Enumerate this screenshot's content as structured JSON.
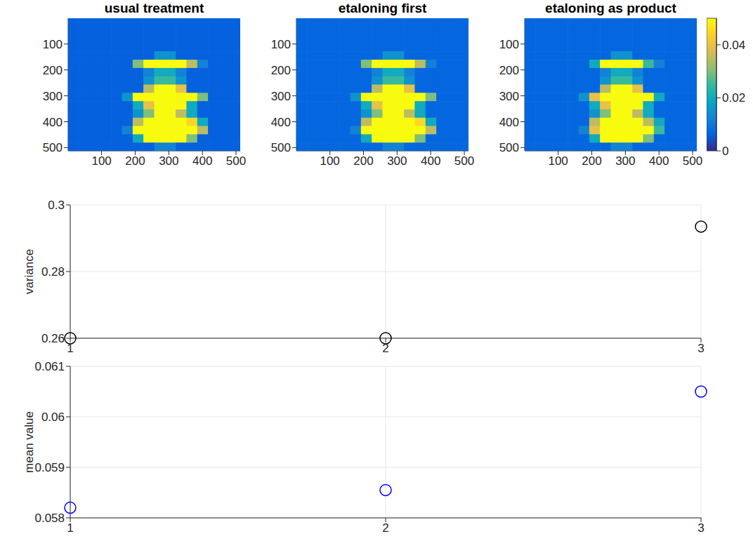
{
  "chart_data": [
    {
      "type": "heatmap",
      "title": "usual treatment",
      "xlim": [
        0.5,
        512.5
      ],
      "ylim": [
        0.5,
        512.5
      ],
      "xticks": [
        100,
        200,
        300,
        400,
        500
      ],
      "yticks": [
        100,
        200,
        300,
        400,
        500
      ],
      "grid": false,
      "cells": [
        [
          0.006,
          0.006,
          0.006,
          0.006,
          0.006,
          0.006,
          0.006,
          0.006,
          0.006,
          0.006,
          0.006,
          0.006,
          0.006,
          0.006,
          0.006,
          0.006
        ],
        [
          0.006,
          0.006,
          0.006,
          0.006,
          0.006,
          0.006,
          0.006,
          0.006,
          0.006,
          0.006,
          0.006,
          0.006,
          0.006,
          0.006,
          0.006,
          0.006
        ],
        [
          0.006,
          0.006,
          0.006,
          0.006,
          0.006,
          0.006,
          0.006,
          0.006,
          0.006,
          0.006,
          0.006,
          0.006,
          0.006,
          0.006,
          0.006,
          0.006
        ],
        [
          0.006,
          0.006,
          0.006,
          0.006,
          0.006,
          0.006,
          0.006,
          0.006,
          0.006,
          0.006,
          0.006,
          0.006,
          0.006,
          0.006,
          0.006,
          0.006
        ],
        [
          0.006,
          0.006,
          0.006,
          0.006,
          0.006,
          0.006,
          0.006,
          0.006,
          0.015,
          0.015,
          0.006,
          0.006,
          0.006,
          0.006,
          0.006,
          0.006
        ],
        [
          0.006,
          0.006,
          0.006,
          0.006,
          0.006,
          0.006,
          0.03,
          0.07,
          0.07,
          0.07,
          0.07,
          0.035,
          0.012,
          0.006,
          0.006,
          0.006
        ],
        [
          0.006,
          0.006,
          0.006,
          0.006,
          0.006,
          0.006,
          0.006,
          0.012,
          0.02,
          0.02,
          0.012,
          0.006,
          0.006,
          0.006,
          0.006,
          0.006
        ],
        [
          0.006,
          0.006,
          0.006,
          0.006,
          0.006,
          0.006,
          0.006,
          0.015,
          0.025,
          0.025,
          0.015,
          0.006,
          0.006,
          0.006,
          0.006,
          0.006
        ],
        [
          0.006,
          0.006,
          0.006,
          0.006,
          0.006,
          0.006,
          0.006,
          0.035,
          0.07,
          0.07,
          0.04,
          0.006,
          0.006,
          0.006,
          0.006,
          0.006
        ],
        [
          0.006,
          0.006,
          0.006,
          0.006,
          0.006,
          0.015,
          0.05,
          0.07,
          0.07,
          0.07,
          0.07,
          0.07,
          0.03,
          0.006,
          0.006,
          0.006
        ],
        [
          0.006,
          0.006,
          0.006,
          0.006,
          0.006,
          0.006,
          0.02,
          0.04,
          0.07,
          0.07,
          0.05,
          0.02,
          0.006,
          0.006,
          0.006,
          0.006
        ],
        [
          0.006,
          0.006,
          0.006,
          0.006,
          0.006,
          0.006,
          0.015,
          0.03,
          0.06,
          0.06,
          0.035,
          0.02,
          0.006,
          0.006,
          0.006,
          0.006
        ],
        [
          0.006,
          0.006,
          0.006,
          0.006,
          0.006,
          0.006,
          0.035,
          0.07,
          0.07,
          0.07,
          0.07,
          0.045,
          0.02,
          0.006,
          0.006,
          0.006
        ],
        [
          0.006,
          0.006,
          0.006,
          0.006,
          0.006,
          0.012,
          0.05,
          0.07,
          0.07,
          0.07,
          0.07,
          0.07,
          0.035,
          0.006,
          0.006,
          0.006
        ],
        [
          0.006,
          0.006,
          0.006,
          0.006,
          0.006,
          0.006,
          0.02,
          0.07,
          0.07,
          0.07,
          0.07,
          0.03,
          0.006,
          0.006,
          0.006,
          0.006
        ],
        [
          0.006,
          0.006,
          0.006,
          0.006,
          0.006,
          0.006,
          0.006,
          0.006,
          0.012,
          0.012,
          0.006,
          0.006,
          0.006,
          0.006,
          0.006,
          0.006
        ]
      ]
    },
    {
      "type": "heatmap",
      "title": "etaloning first",
      "xlim": [
        0.5,
        512.5
      ],
      "ylim": [
        0.5,
        512.5
      ],
      "xticks": [
        100,
        200,
        300,
        400,
        500
      ],
      "yticks": [
        100,
        200,
        300,
        400,
        500
      ],
      "grid": false,
      "cells": [
        [
          0.007,
          0.007,
          0.007,
          0.007,
          0.007,
          0.007,
          0.007,
          0.007,
          0.007,
          0.007,
          0.007,
          0.007,
          0.007,
          0.007,
          0.007,
          0.007
        ],
        [
          0.007,
          0.007,
          0.007,
          0.007,
          0.007,
          0.007,
          0.007,
          0.007,
          0.007,
          0.007,
          0.007,
          0.007,
          0.007,
          0.007,
          0.007,
          0.007
        ],
        [
          0.007,
          0.007,
          0.007,
          0.007,
          0.007,
          0.007,
          0.007,
          0.007,
          0.007,
          0.007,
          0.007,
          0.007,
          0.007,
          0.007,
          0.007,
          0.007
        ],
        [
          0.007,
          0.007,
          0.007,
          0.007,
          0.007,
          0.007,
          0.007,
          0.007,
          0.007,
          0.007,
          0.007,
          0.007,
          0.007,
          0.007,
          0.007,
          0.007
        ],
        [
          0.007,
          0.007,
          0.007,
          0.007,
          0.007,
          0.007,
          0.007,
          0.007,
          0.015,
          0.015,
          0.007,
          0.007,
          0.007,
          0.007,
          0.007,
          0.007
        ],
        [
          0.007,
          0.007,
          0.007,
          0.007,
          0.007,
          0.007,
          0.03,
          0.07,
          0.07,
          0.07,
          0.07,
          0.035,
          0.012,
          0.007,
          0.007,
          0.007
        ],
        [
          0.007,
          0.007,
          0.007,
          0.007,
          0.007,
          0.007,
          0.007,
          0.012,
          0.02,
          0.02,
          0.012,
          0.007,
          0.007,
          0.007,
          0.007,
          0.007
        ],
        [
          0.007,
          0.007,
          0.007,
          0.007,
          0.007,
          0.007,
          0.007,
          0.015,
          0.025,
          0.025,
          0.015,
          0.007,
          0.007,
          0.007,
          0.007,
          0.007
        ],
        [
          0.007,
          0.007,
          0.007,
          0.007,
          0.007,
          0.007,
          0.007,
          0.035,
          0.07,
          0.07,
          0.04,
          0.007,
          0.007,
          0.007,
          0.007,
          0.007
        ],
        [
          0.007,
          0.007,
          0.007,
          0.007,
          0.007,
          0.015,
          0.05,
          0.07,
          0.07,
          0.07,
          0.07,
          0.07,
          0.03,
          0.007,
          0.007,
          0.007
        ],
        [
          0.007,
          0.007,
          0.007,
          0.007,
          0.007,
          0.007,
          0.02,
          0.04,
          0.07,
          0.07,
          0.05,
          0.02,
          0.007,
          0.007,
          0.007,
          0.007
        ],
        [
          0.007,
          0.007,
          0.007,
          0.007,
          0.007,
          0.007,
          0.015,
          0.03,
          0.06,
          0.06,
          0.035,
          0.02,
          0.007,
          0.007,
          0.007,
          0.007
        ],
        [
          0.007,
          0.007,
          0.007,
          0.007,
          0.007,
          0.007,
          0.035,
          0.07,
          0.07,
          0.07,
          0.07,
          0.045,
          0.02,
          0.007,
          0.007,
          0.007
        ],
        [
          0.007,
          0.007,
          0.007,
          0.007,
          0.007,
          0.012,
          0.05,
          0.07,
          0.07,
          0.07,
          0.07,
          0.07,
          0.035,
          0.007,
          0.007,
          0.007
        ],
        [
          0.007,
          0.007,
          0.007,
          0.007,
          0.007,
          0.007,
          0.02,
          0.07,
          0.07,
          0.07,
          0.07,
          0.03,
          0.007,
          0.007,
          0.007,
          0.007
        ],
        [
          0.007,
          0.007,
          0.007,
          0.007,
          0.007,
          0.007,
          0.007,
          0.007,
          0.012,
          0.012,
          0.007,
          0.007,
          0.007,
          0.007,
          0.007,
          0.007
        ]
      ]
    },
    {
      "type": "heatmap",
      "title": "etaloning as product",
      "xlim": [
        0.5,
        512.5
      ],
      "ylim": [
        0.5,
        512.5
      ],
      "xticks": [
        100,
        200,
        300,
        400,
        500
      ],
      "yticks": [
        100,
        200,
        300,
        400,
        500
      ],
      "grid": false,
      "colorbar": {
        "range": [
          0,
          0.05
        ],
        "ticks": [
          0,
          0.02,
          0.04
        ]
      },
      "cells": [
        [
          0.007,
          0.007,
          0.007,
          0.007,
          0.007,
          0.007,
          0.007,
          0.007,
          0.007,
          0.007,
          0.007,
          0.007,
          0.007,
          0.007,
          0.007,
          0.007
        ],
        [
          0.007,
          0.007,
          0.007,
          0.007,
          0.007,
          0.007,
          0.007,
          0.007,
          0.007,
          0.007,
          0.007,
          0.007,
          0.007,
          0.007,
          0.007,
          0.007
        ],
        [
          0.007,
          0.007,
          0.007,
          0.007,
          0.007,
          0.007,
          0.007,
          0.007,
          0.007,
          0.007,
          0.007,
          0.007,
          0.007,
          0.007,
          0.007,
          0.007
        ],
        [
          0.007,
          0.007,
          0.007,
          0.007,
          0.007,
          0.007,
          0.007,
          0.007,
          0.007,
          0.007,
          0.007,
          0.007,
          0.007,
          0.007,
          0.007,
          0.007
        ],
        [
          0.007,
          0.007,
          0.007,
          0.007,
          0.007,
          0.007,
          0.007,
          0.007,
          0.015,
          0.015,
          0.007,
          0.007,
          0.007,
          0.007,
          0.007,
          0.007
        ],
        [
          0.007,
          0.007,
          0.007,
          0.007,
          0.007,
          0.007,
          0.02,
          0.07,
          0.07,
          0.07,
          0.07,
          0.025,
          0.012,
          0.007,
          0.007,
          0.007
        ],
        [
          0.007,
          0.007,
          0.007,
          0.007,
          0.007,
          0.007,
          0.007,
          0.012,
          0.02,
          0.02,
          0.012,
          0.007,
          0.007,
          0.007,
          0.007,
          0.007
        ],
        [
          0.007,
          0.007,
          0.007,
          0.007,
          0.007,
          0.007,
          0.007,
          0.015,
          0.025,
          0.025,
          0.015,
          0.007,
          0.007,
          0.007,
          0.007,
          0.007
        ],
        [
          0.007,
          0.007,
          0.007,
          0.007,
          0.007,
          0.007,
          0.007,
          0.035,
          0.07,
          0.07,
          0.04,
          0.007,
          0.007,
          0.007,
          0.007,
          0.007
        ],
        [
          0.007,
          0.007,
          0.007,
          0.007,
          0.007,
          0.015,
          0.04,
          0.07,
          0.07,
          0.07,
          0.07,
          0.07,
          0.02,
          0.007,
          0.007,
          0.007
        ],
        [
          0.007,
          0.007,
          0.007,
          0.007,
          0.007,
          0.007,
          0.02,
          0.04,
          0.07,
          0.07,
          0.05,
          0.02,
          0.007,
          0.007,
          0.007,
          0.007
        ],
        [
          0.007,
          0.007,
          0.007,
          0.007,
          0.007,
          0.007,
          0.015,
          0.03,
          0.06,
          0.06,
          0.035,
          0.02,
          0.007,
          0.007,
          0.007,
          0.007
        ],
        [
          0.007,
          0.007,
          0.007,
          0.007,
          0.007,
          0.007,
          0.035,
          0.07,
          0.07,
          0.07,
          0.07,
          0.035,
          0.02,
          0.007,
          0.007,
          0.007
        ],
        [
          0.007,
          0.007,
          0.007,
          0.007,
          0.007,
          0.012,
          0.04,
          0.07,
          0.07,
          0.07,
          0.07,
          0.07,
          0.025,
          0.007,
          0.007,
          0.007
        ],
        [
          0.007,
          0.007,
          0.007,
          0.007,
          0.007,
          0.007,
          0.02,
          0.07,
          0.07,
          0.07,
          0.07,
          0.03,
          0.007,
          0.007,
          0.007,
          0.007
        ],
        [
          0.007,
          0.007,
          0.007,
          0.007,
          0.007,
          0.007,
          0.007,
          0.007,
          0.012,
          0.012,
          0.007,
          0.007,
          0.007,
          0.007,
          0.007,
          0.007
        ]
      ]
    },
    {
      "type": "scatter",
      "x": [
        1,
        2,
        3
      ],
      "values": [
        0.26,
        0.26,
        0.2935
      ],
      "xlim": [
        1,
        3
      ],
      "xticks": [
        1,
        2,
        3
      ],
      "ylim": [
        0.26,
        0.3
      ],
      "yticks": [
        0.26,
        0.28,
        0.3
      ],
      "y_label": "variance",
      "color": "#000000",
      "marker": "circle",
      "grid": true
    },
    {
      "type": "scatter",
      "x": [
        1,
        2,
        3
      ],
      "values": [
        0.0582,
        0.05855,
        0.0605
      ],
      "xlim": [
        1,
        3
      ],
      "xticks": [
        1,
        2,
        3
      ],
      "ylim": [
        0.058,
        0.061
      ],
      "yticks": [
        0.058,
        0.059,
        0.06,
        0.061
      ],
      "y_label": "mean value",
      "color": "#0000ff",
      "marker": "circle",
      "grid": true
    }
  ]
}
